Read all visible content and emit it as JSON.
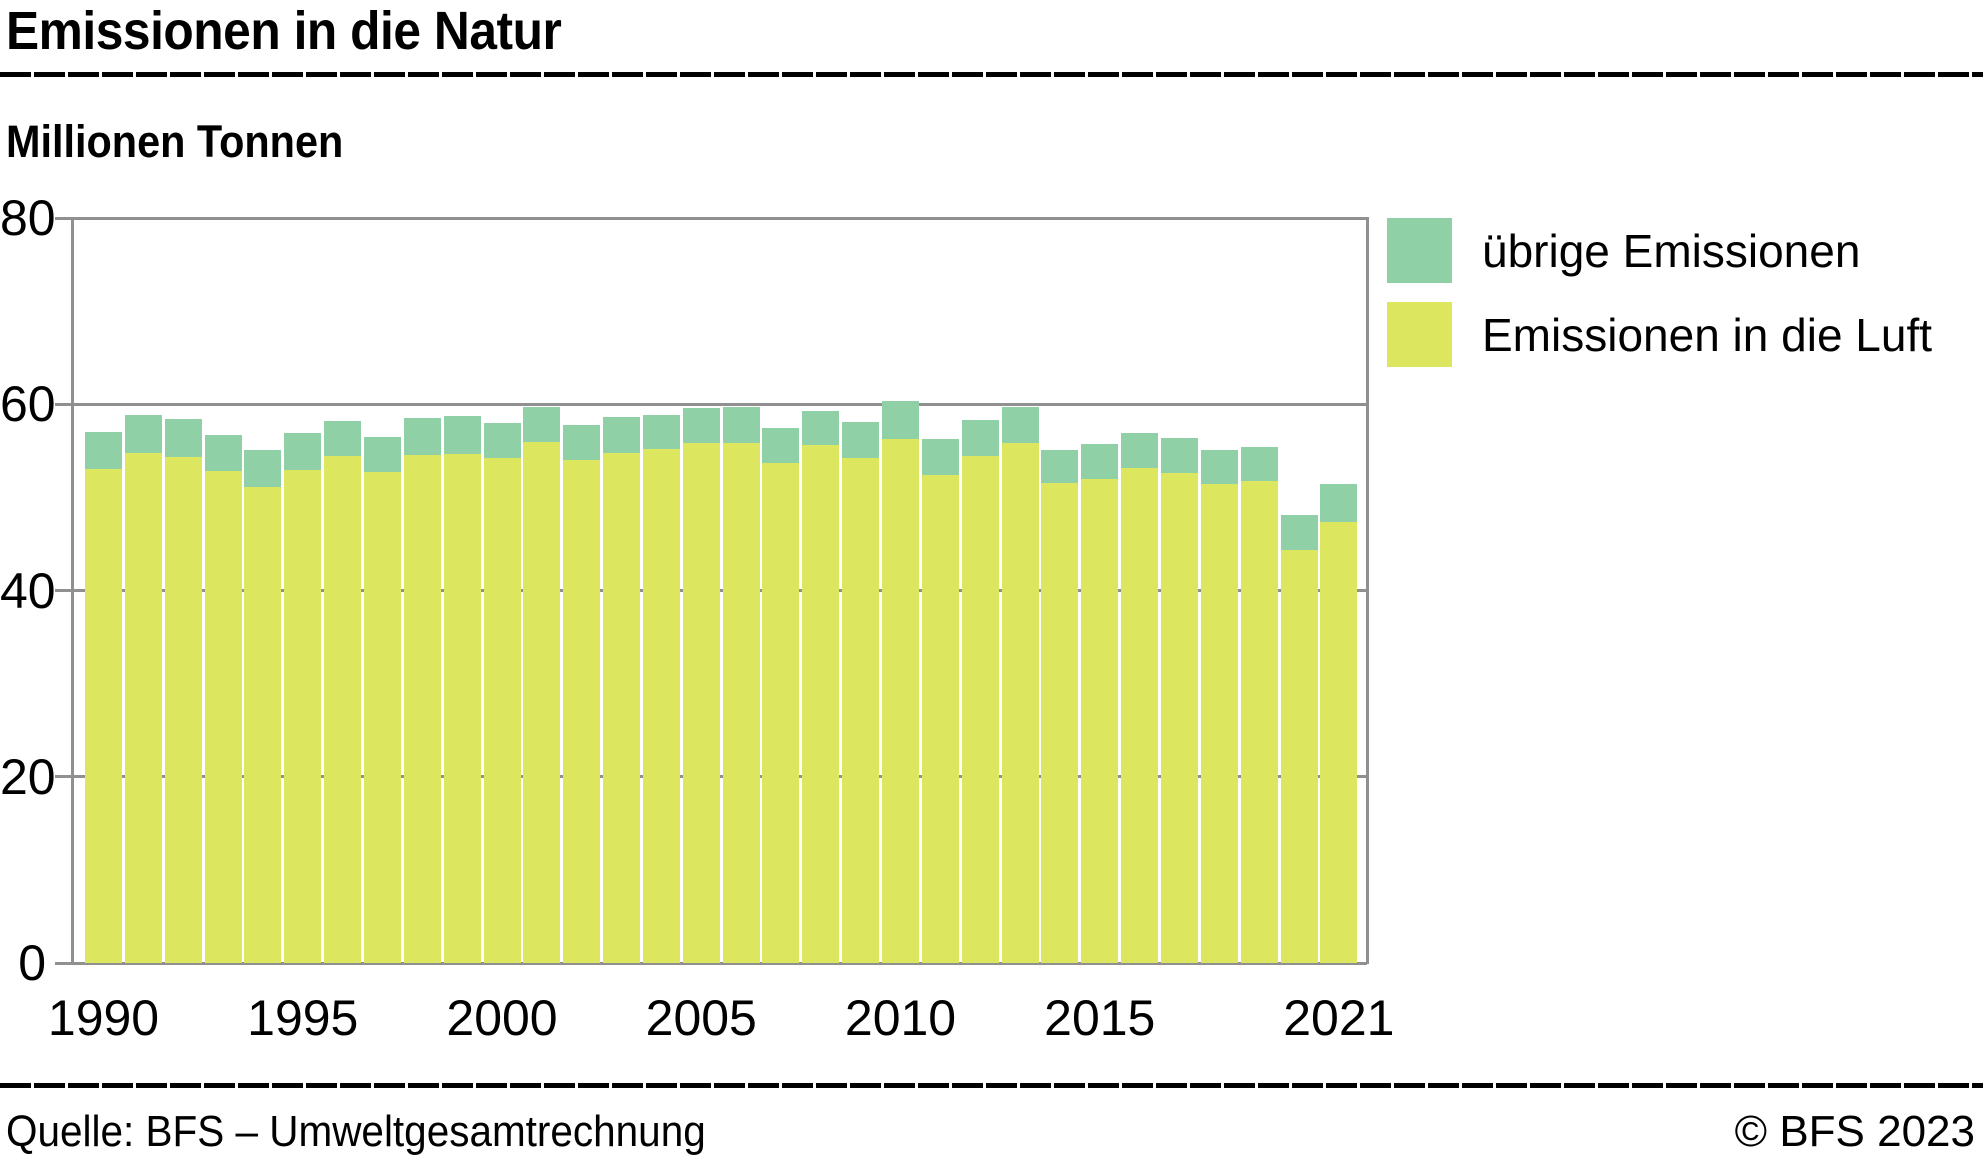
{
  "header": {
    "title": "Emissionen in die Natur",
    "unit_label": "Millionen Tonnen"
  },
  "footer": {
    "source": "Quelle: BFS – Umweltgesamtrechnung",
    "copyright": "© BFS 2023"
  },
  "colors": {
    "uebrige_emissionen": "#8fd0a6",
    "emissionen_luft": "#dce65e",
    "axis_gray": "#909090",
    "text": "#000000"
  },
  "chart_data": {
    "type": "bar",
    "stacked": true,
    "title": "Emissionen in die Natur",
    "ylabel": "Millionen Tonnen",
    "xlabel": "",
    "ylim": [
      0,
      80
    ],
    "y_ticks": [
      80,
      60,
      40,
      20,
      0
    ],
    "x_tick_years": [
      1990,
      1995,
      2000,
      2005,
      2010,
      2015,
      2021
    ],
    "grid": "horizontal",
    "legend_position": "top-right",
    "years": [
      1990,
      1991,
      1992,
      1993,
      1994,
      1995,
      1996,
      1997,
      1998,
      1999,
      2000,
      2001,
      2002,
      2003,
      2004,
      2005,
      2006,
      2007,
      2008,
      2009,
      2010,
      2011,
      2012,
      2013,
      2014,
      2015,
      2016,
      2017,
      2018,
      2019,
      2020,
      2021
    ],
    "series": [
      {
        "name": "übrige Emissionen",
        "color": "#8fd0a6",
        "stack": "top",
        "values": [
          4.0,
          4.1,
          4.1,
          3.9,
          4.0,
          4.0,
          3.8,
          3.8,
          3.9,
          4.0,
          3.8,
          3.8,
          3.8,
          3.8,
          3.7,
          3.8,
          3.9,
          3.7,
          3.7,
          3.9,
          4.0,
          3.9,
          3.9,
          3.9,
          3.6,
          3.7,
          3.7,
          3.8,
          3.7,
          3.6,
          3.7,
          4.0
        ]
      },
      {
        "name": "Emissionen in die Luft",
        "color": "#dce65e",
        "stack": "bottom",
        "values": [
          53.0,
          54.8,
          54.3,
          52.8,
          51.1,
          52.9,
          54.4,
          52.7,
          54.6,
          54.7,
          54.2,
          55.9,
          54.0,
          54.8,
          55.2,
          55.8,
          55.8,
          53.7,
          55.6,
          54.2,
          56.3,
          52.4,
          54.4,
          55.8,
          51.5,
          52.0,
          53.2,
          52.6,
          51.4,
          51.8,
          44.4,
          47.4
        ]
      }
    ]
  }
}
